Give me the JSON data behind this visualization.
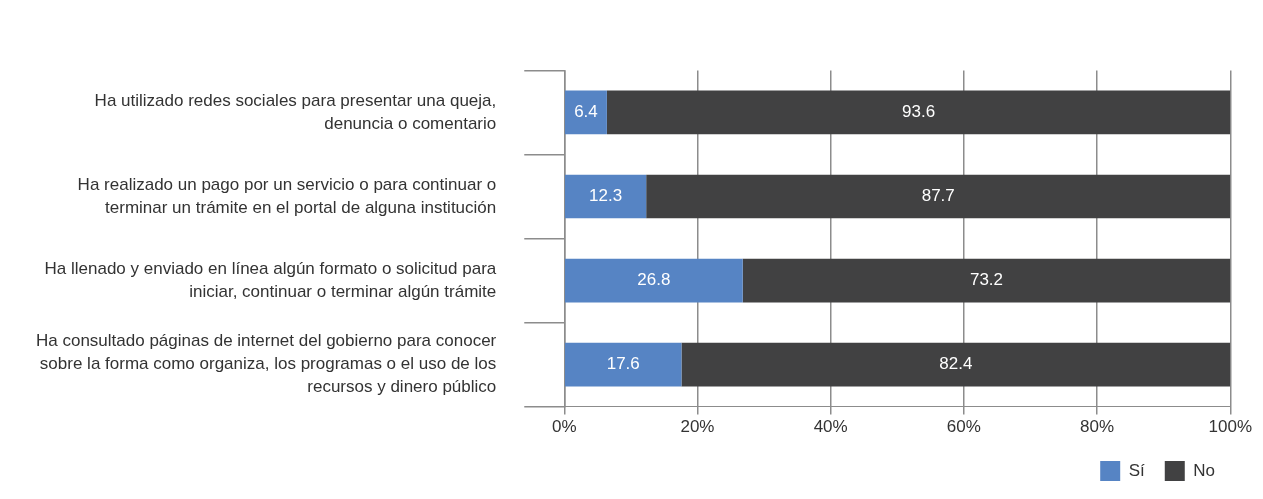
{
  "chart_data": {
    "type": "bar",
    "orientation": "horizontal",
    "stacked": true,
    "categories": [
      "Ha utilizado redes sociales para presentar una queja, denuncia o comentario",
      "Ha realizado un pago por un servicio o para continuar o terminar un trámite en el portal de alguna institución",
      "Ha llenado y enviado en línea algún formato o solicitud para iniciar, continuar o terminar algún trámite",
      "Ha consultado páginas de internet del gobierno para conocer sobre la forma como organiza, los programas o el uso de los recursos y dinero público"
    ],
    "series": [
      {
        "name": "Sí",
        "color": "#5684c4",
        "values": [
          6.4,
          12.3,
          26.8,
          17.6
        ]
      },
      {
        "name": "No",
        "color": "#414142",
        "values": [
          93.6,
          87.7,
          73.2,
          82.4
        ]
      }
    ],
    "xlim": [
      0,
      100
    ],
    "xticks": [
      {
        "value": 0,
        "label": "0%"
      },
      {
        "value": 20,
        "label": "20%"
      },
      {
        "value": 40,
        "label": "40%"
      },
      {
        "value": 60,
        "label": "60%"
      },
      {
        "value": 80,
        "label": "80%"
      },
      {
        "value": 100,
        "label": "100%"
      }
    ],
    "grid": "x",
    "legend": "bottom right",
    "data_labels": true
  }
}
